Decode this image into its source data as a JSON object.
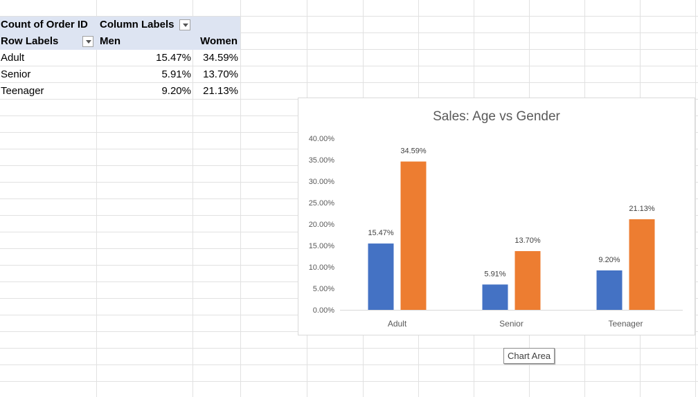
{
  "pivot": {
    "value_field": "Count of Order ID",
    "column_labels": "Column Labels",
    "row_labels": "Row Labels",
    "col_men": "Men",
    "col_women": "Women",
    "rows": [
      {
        "label": "Adult",
        "men": "15.47%",
        "women": "34.59%"
      },
      {
        "label": "Senior",
        "men": "5.91%",
        "women": "13.70%"
      },
      {
        "label": "Teenager",
        "men": "9.20%",
        "women": "21.13%"
      }
    ]
  },
  "chart_data": {
    "type": "bar",
    "title": "Sales: Age vs Gender",
    "categories": [
      "Adult",
      "Senior",
      "Teenager"
    ],
    "series": [
      {
        "values": [
          15.47,
          5.91,
          9.2
        ],
        "labels": [
          "15.47%",
          "5.91%",
          "9.20%"
        ],
        "color": "#4472c4"
      },
      {
        "values": [
          34.59,
          13.7,
          21.13
        ],
        "labels": [
          "34.59%",
          "13.70%",
          "21.13%"
        ],
        "color": "#ed7d31"
      }
    ],
    "ylim": [
      0,
      40
    ],
    "yticks": [
      "0.00%",
      "5.00%",
      "10.00%",
      "15.00%",
      "20.00%",
      "25.00%",
      "30.00%",
      "35.00%",
      "40.00%"
    ],
    "grid": false,
    "legend": "none"
  },
  "tooltip": "Chart Area",
  "colors": {
    "grid_line": "#e1e1e1",
    "header_fill": "#dde4f2"
  }
}
